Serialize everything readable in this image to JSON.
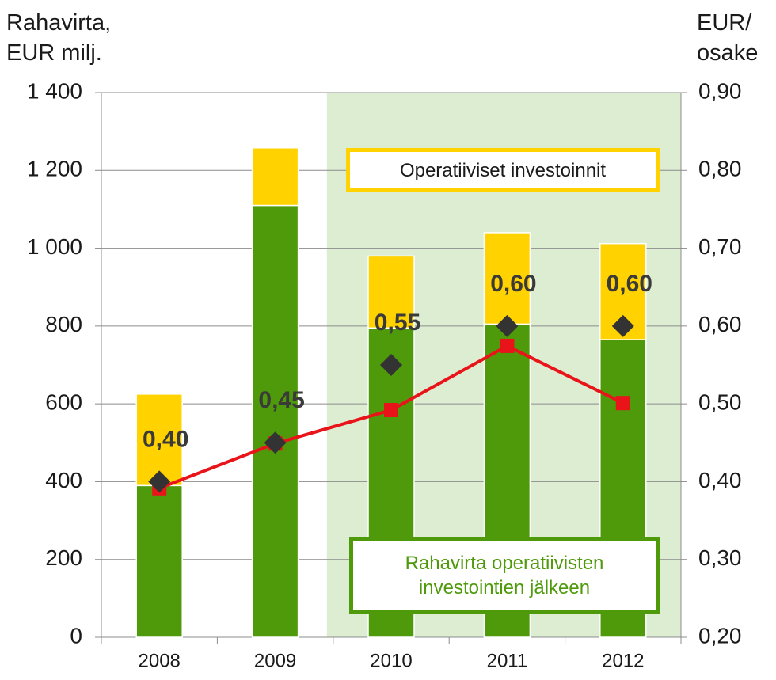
{
  "chart_data": {
    "type": "bar",
    "y_label": "Rahavirta, EUR milj.",
    "y2_label": "EUR/ osake",
    "categories": [
      "2008",
      "2009",
      "2010",
      "2011",
      "2012"
    ],
    "series": [
      {
        "name": "Rahavirta operatiivisten investointien jälkeen",
        "color": "#4e9a0a",
        "type": "bar",
        "values": [
          390,
          1110,
          795,
          805,
          765
        ]
      },
      {
        "name": "Operatiiviset investoinnit",
        "color": "#ffd200",
        "type": "bar",
        "values": [
          235,
          148,
          185,
          235,
          247
        ]
      },
      {
        "color": "#e8141a",
        "type": "line",
        "values": [
          383,
          498,
          584,
          749,
          602
        ]
      },
      {
        "color": "#333333",
        "type": "scatter",
        "axis": "y2",
        "values": [
          0.4,
          0.45,
          0.55,
          0.6,
          0.6
        ],
        "value_labels": [
          "0,40",
          "0,45",
          "0,55",
          "0,60",
          "0,60"
        ]
      }
    ],
    "ylim": [
      0,
      1400
    ],
    "yticks": [
      0,
      200,
      400,
      600,
      800,
      {
        "value": 1000,
        "label": "1 000"
      },
      {
        "value": 1200,
        "label": "1 200"
      },
      {
        "value": 1400,
        "label": "1 400"
      }
    ],
    "y2lim": [
      0.2,
      0.9
    ],
    "y2ticks": [
      {
        "value": 0.2,
        "label": "0,20"
      },
      {
        "value": 0.3,
        "label": "0,30"
      },
      {
        "value": 0.4,
        "label": "0,40"
      },
      {
        "value": 0.5,
        "label": "0,50"
      },
      {
        "value": 0.6,
        "label": "0,60"
      },
      {
        "value": 0.7,
        "label": "0,70"
      },
      {
        "value": 0.8,
        "label": "0,80"
      },
      {
        "value": 0.9,
        "label": "0,90"
      }
    ],
    "grid": true,
    "stacked": true
  }
}
